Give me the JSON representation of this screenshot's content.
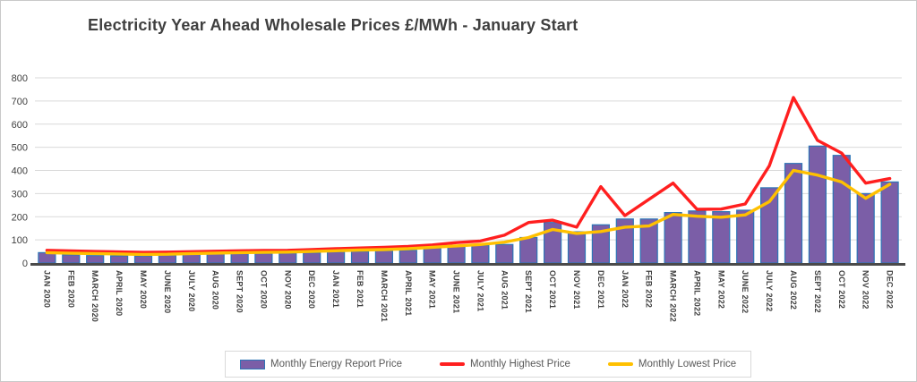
{
  "title": "Electricity Year Ahead Wholesale Prices £/MWh - January Start",
  "colors": {
    "bar_fill": "#7b5ea7",
    "bar_border": "#2e75b6",
    "highest_line": "#ff1f1f",
    "lowest_line": "#ffc000",
    "gridline": "#d9d9d9",
    "axis_line": "#4a4a4a",
    "tick_text": "#404040"
  },
  "legend": {
    "items": [
      {
        "label": "Monthly Energy Report Price",
        "type": "bar",
        "color": "#7b5ea7",
        "border": "#2e75b6"
      },
      {
        "label": "Monthly Highest Price",
        "type": "line",
        "color": "#ff1f1f"
      },
      {
        "label": "Monthly Lowest Price",
        "type": "line",
        "color": "#ffc000"
      }
    ]
  },
  "chart_data": {
    "type": "bar",
    "title": "Electricity Year Ahead Wholesale Prices £/MWh - January Start",
    "xlabel": "",
    "ylabel": "",
    "ylim": [
      0,
      800
    ],
    "yticks": [
      0,
      100,
      200,
      300,
      400,
      500,
      600,
      700,
      800
    ],
    "grid": true,
    "legend_position": "bottom",
    "categories": [
      "JAN 2020",
      "FEB 2020",
      "MARCH 2020",
      "APRIL 2020",
      "MAY 2020",
      "JUNE 2020",
      "JULY 2020",
      "AUG 2020",
      "SEPT 2020",
      "OCT 2020",
      "NOV 2020",
      "DEC 2020",
      "JAN 2021",
      "FEB 2021",
      "MARCH 2021",
      "APRIL 2021",
      "MAY 2021",
      "JUNE 2021",
      "JULY 2021",
      "AUG 2021",
      "SEPT 2021",
      "OCT 2021",
      "NOV 2021",
      "DEC 2021",
      "JAN 2022",
      "FEB 2022",
      "MARCH 2022",
      "APRIL 2022",
      "MAY 2022",
      "JUNE 2022",
      "JULY 2022",
      "AUG 2022",
      "SEPT 2022",
      "OCT 2022",
      "NOV 2022",
      "DEC 2022"
    ],
    "series": [
      {
        "name": "Monthly Energy Report Price",
        "type": "bar",
        "color": "#7b5ea7",
        "border_color": "#2e75b6",
        "values": [
          45,
          35,
          32,
          31,
          30,
          33,
          38,
          39,
          40,
          41,
          42,
          44,
          48,
          50,
          53,
          55,
          65,
          72,
          76,
          80,
          110,
          175,
          135,
          165,
          190,
          190,
          218,
          225,
          222,
          228,
          325,
          430,
          505,
          465,
          300,
          350
        ]
      },
      {
        "name": "Monthly Highest Price",
        "type": "line",
        "color": "#ff1f1f",
        "values": [
          55,
          52,
          50,
          48,
          46,
          47,
          49,
          51,
          53,
          54,
          55,
          58,
          62,
          65,
          68,
          72,
          78,
          88,
          95,
          120,
          175,
          185,
          155,
          330,
          205,
          275,
          345,
          232,
          233,
          255,
          420,
          715,
          530,
          475,
          345,
          365
        ]
      },
      {
        "name": "Monthly Lowest Price",
        "type": "line",
        "color": "#ffc000",
        "values": [
          45,
          42,
          41,
          39,
          37,
          38,
          41,
          43,
          45,
          46,
          47,
          50,
          53,
          56,
          58,
          62,
          68,
          74,
          80,
          90,
          110,
          145,
          128,
          136,
          155,
          160,
          210,
          202,
          198,
          208,
          265,
          400,
          380,
          350,
          280,
          340
        ]
      }
    ]
  }
}
